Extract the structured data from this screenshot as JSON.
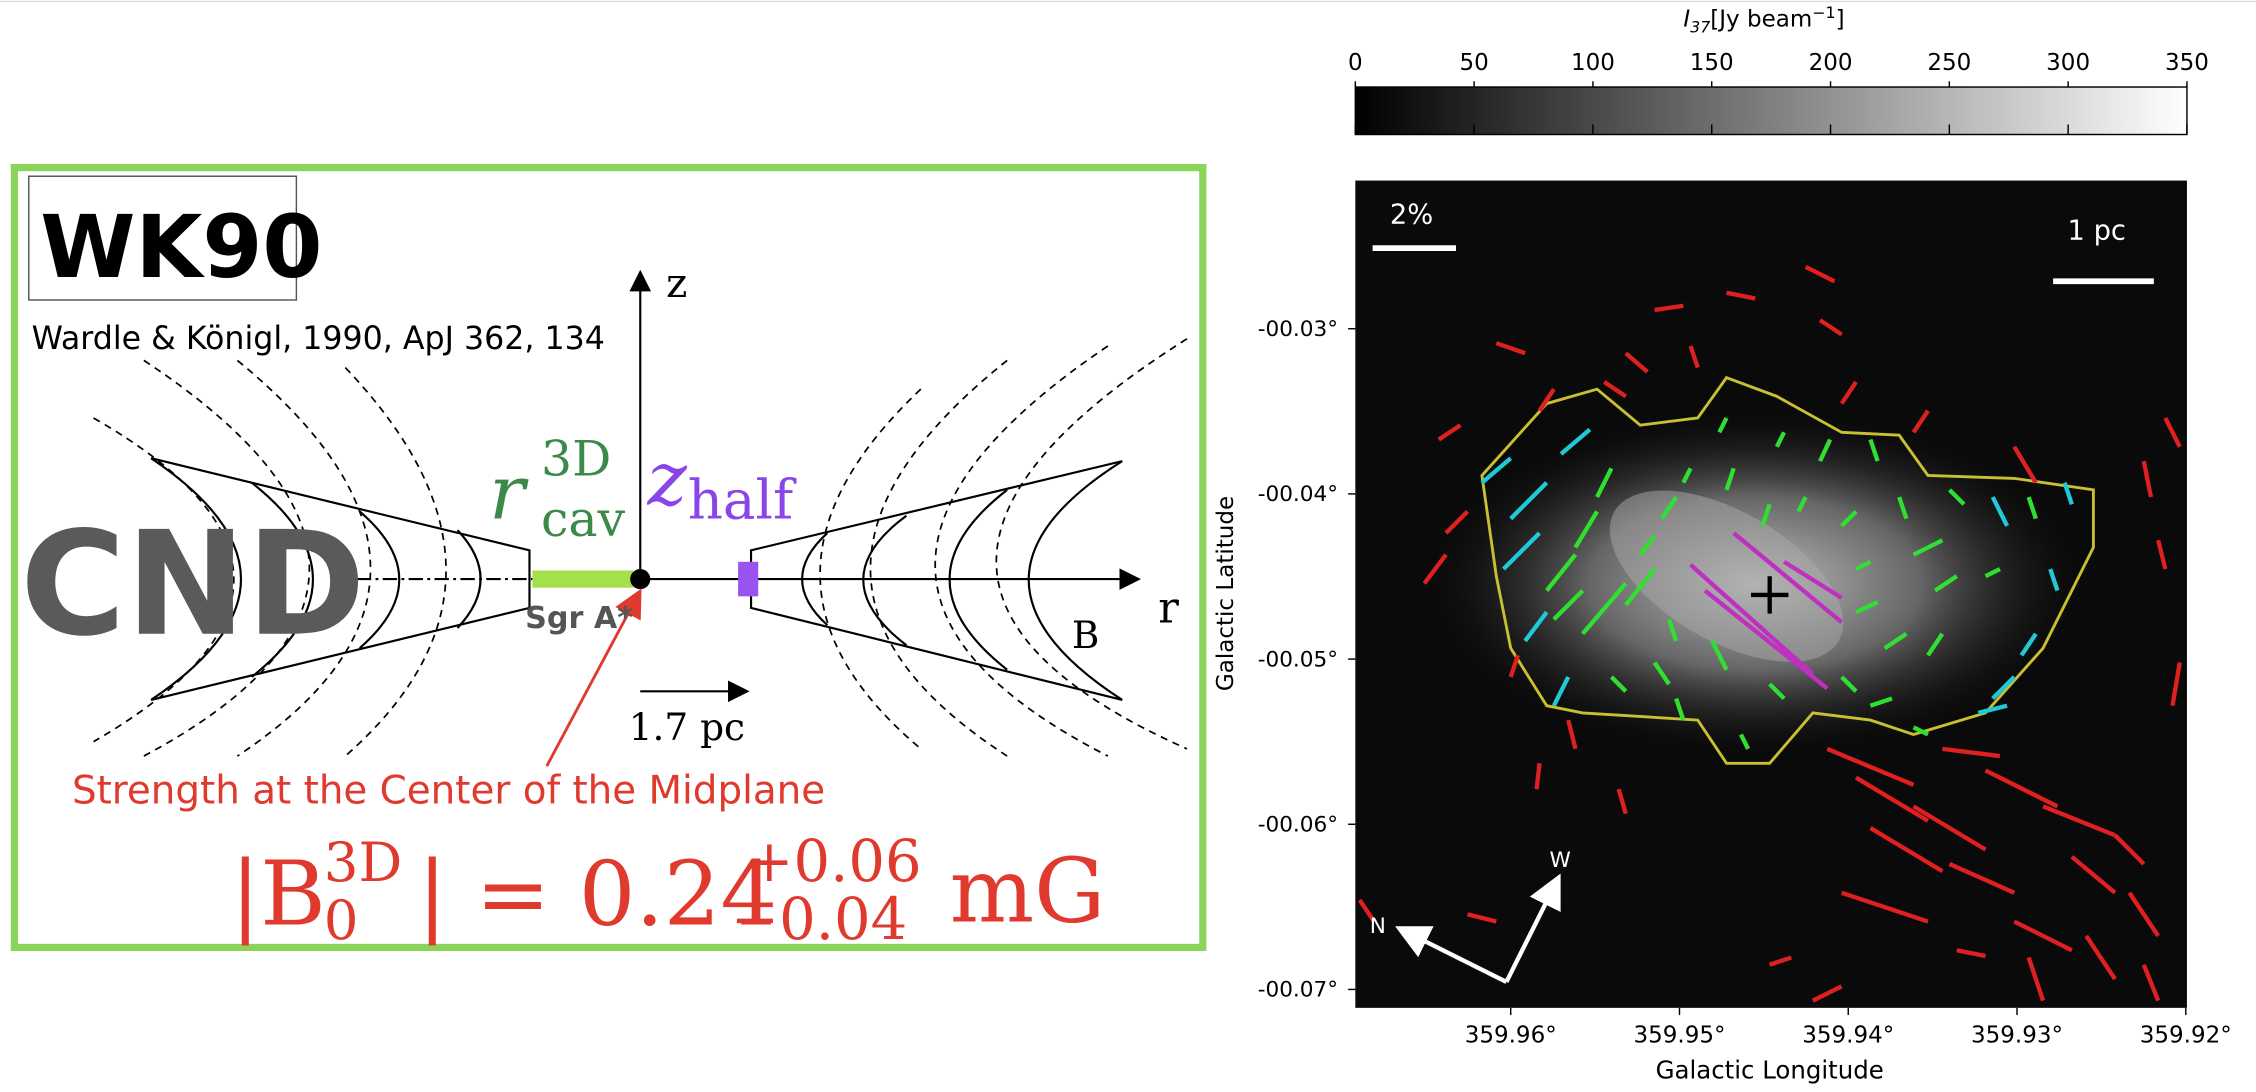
{
  "diagram": {
    "label": "WK90",
    "citation": "Wardle & Königl, 1990, ApJ 362, 134",
    "cnd": "CND",
    "z_axis": "z",
    "r_axis": "r",
    "field": "B",
    "sgr": "Sgr A*",
    "scale": "1.7 pc",
    "r_cav": {
      "base": "r",
      "sup": "3D",
      "sub": "cav"
    },
    "z_half": {
      "base": "z",
      "sub": "half"
    },
    "caption": "Strength at the Center of the Midplane",
    "equation": {
      "left": "|B",
      "sup": "3D",
      "sub": "0",
      "middle": "| = 0.24",
      "plus": "+0.06",
      "minus": "−0.04",
      "unit": "mG"
    }
  },
  "map": {
    "colorbar": {
      "label": {
        "base": "I",
        "sub": "37",
        "unit": "[Jy beam",
        "exp": "−1",
        "close": "]"
      },
      "ticks": [
        "0",
        "50",
        "100",
        "150",
        "200",
        "250",
        "300",
        "350"
      ]
    },
    "pol_scale": "2%",
    "length_scale": "1 pc",
    "north": "N",
    "west": "W",
    "y_title": "Galactic Latitude",
    "x_title": "Galactic Longitude",
    "yticks": [
      "-00.03°",
      "-00.04°",
      "-00.05°",
      "-00.06°",
      "-00.07°"
    ],
    "xticks": [
      "359.96°",
      "359.95°",
      "359.94°",
      "359.93°",
      "359.92°"
    ]
  }
}
